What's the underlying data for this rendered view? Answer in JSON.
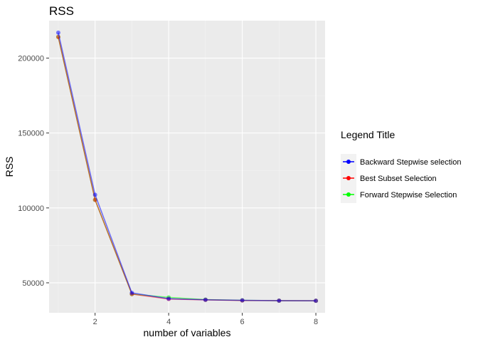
{
  "chart_data": {
    "type": "line",
    "title": "RSS",
    "xlabel": "number of variables",
    "ylabel": "RSS",
    "xlim": [
      0.75,
      8.25
    ],
    "ylim": [
      30000,
      225000
    ],
    "xticks": [
      2,
      4,
      6,
      8
    ],
    "xminor": [
      1,
      3,
      5,
      7
    ],
    "yticks": [
      50000,
      100000,
      150000,
      200000
    ],
    "yminor": [
      75000,
      125000,
      175000
    ],
    "grid": true,
    "legend": {
      "title": "Legend Title",
      "position": "right"
    },
    "x": [
      1,
      2,
      3,
      4,
      5,
      6,
      7,
      8
    ],
    "series": [
      {
        "name": "Backward Stepwise selection",
        "color": "#0000ff",
        "values": [
          217000,
          108800,
          43300,
          39400,
          38700,
          38300,
          38100,
          38000
        ]
      },
      {
        "name": "Best Subset Selection",
        "color": "#ff0000",
        "values": [
          214100,
          105400,
          42500,
          39200,
          38600,
          38200,
          38100,
          38000
        ]
      },
      {
        "name": "Forward Stepwise Selection",
        "color": "#00ff00",
        "values": [
          214100,
          105400,
          42500,
          40300,
          38800,
          38300,
          38100,
          38000
        ]
      }
    ]
  }
}
